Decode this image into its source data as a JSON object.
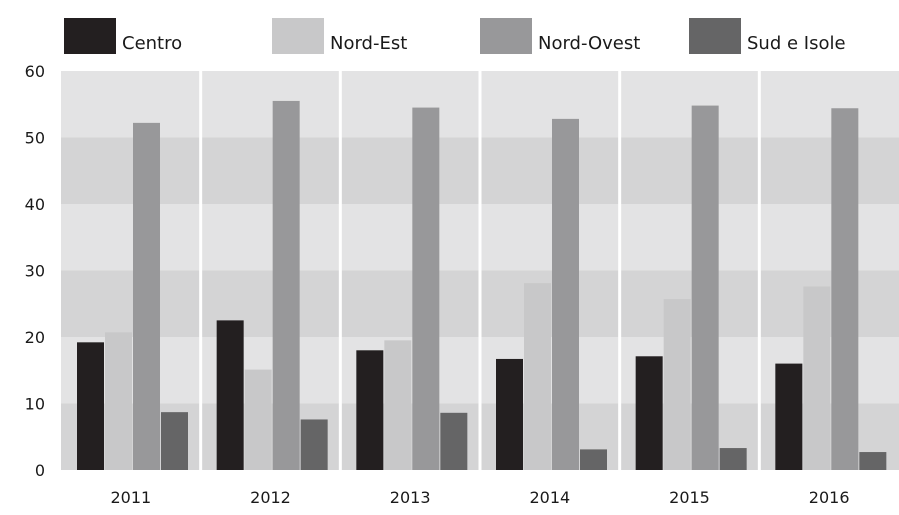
{
  "chart_data": {
    "type": "bar",
    "categories": [
      "2011",
      "2012",
      "2013",
      "2014",
      "2015",
      "2016"
    ],
    "series": [
      {
        "name": "Centro",
        "color": "#231f20",
        "values": [
          19.2,
          22.5,
          18.0,
          16.7,
          17.1,
          16.0
        ]
      },
      {
        "name": "Nord-Est",
        "color": "#c8c8c9",
        "values": [
          20.7,
          15.1,
          19.5,
          28.1,
          25.7,
          27.6
        ]
      },
      {
        "name": "Nord-Ovest",
        "color": "#98989a",
        "values": [
          52.2,
          55.5,
          54.5,
          52.8,
          54.8,
          54.4
        ]
      },
      {
        "name": "Sud e Isole",
        "color": "#656566",
        "values": [
          8.7,
          7.6,
          8.6,
          3.1,
          3.3,
          2.7
        ]
      }
    ],
    "ylim": [
      0,
      60
    ],
    "yticks": [
      0,
      10,
      20,
      30,
      40,
      50,
      60
    ],
    "xlabel": "",
    "ylabel": "",
    "grid": "alternating horizontal bands",
    "band_colors": [
      "#e3e3e4",
      "#d4d4d5"
    ],
    "legend": "top"
  }
}
